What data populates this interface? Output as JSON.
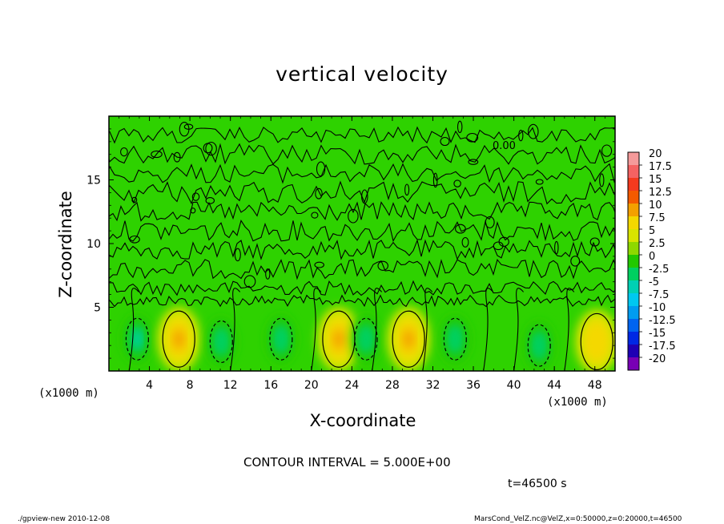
{
  "chart_data": {
    "type": "heatmap",
    "title": "vertical velocity",
    "xlabel": "X-coordinate",
    "ylabel": "Z-coordinate",
    "x_unit_label": "(x1000 m)",
    "xlim": [
      0,
      50
    ],
    "ylim": [
      0,
      20
    ],
    "x_ticks": [
      4,
      8,
      12,
      16,
      20,
      24,
      28,
      32,
      36,
      40,
      44,
      48
    ],
    "y_ticks": [
      5,
      10,
      15
    ],
    "colorbar": {
      "levels": [
        "20",
        "17.5",
        "15",
        "12.5",
        "10",
        "7.5",
        "5",
        "2.5",
        "0",
        "-2.5",
        "-5",
        "-7.5",
        "-10",
        "-12.5",
        "-15",
        "-17.5",
        "-20"
      ],
      "colors": [
        "#f49a9a",
        "#f46262",
        "#f43a1e",
        "#f45a00",
        "#f4a000",
        "#f4d800",
        "#d8e400",
        "#8ed800",
        "#22c800",
        "#00d060",
        "#00d0b4",
        "#00c8f0",
        "#009cf0",
        "#0064f0",
        "#0028e4",
        "#1e00b4",
        "#7800b4"
      ]
    },
    "contour_label": "0.00",
    "cells": [
      {
        "x": 2.8,
        "z": 2.5,
        "w": -5.5
      },
      {
        "x": 6.9,
        "z": 2.5,
        "w": 8.0
      },
      {
        "x": 11.1,
        "z": 2.3,
        "w": -4.5
      },
      {
        "x": 17.0,
        "z": 2.5,
        "w": -3.5
      },
      {
        "x": 22.7,
        "z": 2.5,
        "w": 8.0
      },
      {
        "x": 25.4,
        "z": 2.5,
        "w": -4.5
      },
      {
        "x": 29.6,
        "z": 2.5,
        "w": 8.5
      },
      {
        "x": 34.2,
        "z": 2.5,
        "w": -4.0
      },
      {
        "x": 42.5,
        "z": 2.0,
        "w": -4.0
      },
      {
        "x": 48.2,
        "z": 2.3,
        "w": 7.0
      }
    ]
  },
  "notes": {
    "contour_interval": "CONTOUR INTERVAL = 5.000E+00",
    "time": "t=46500 s"
  },
  "footer": {
    "left": "./gpview-new  2010-12-08",
    "right": "MarsCond_VelZ.nc@VelZ,x=0:50000,z=0:20000,t=46500"
  }
}
